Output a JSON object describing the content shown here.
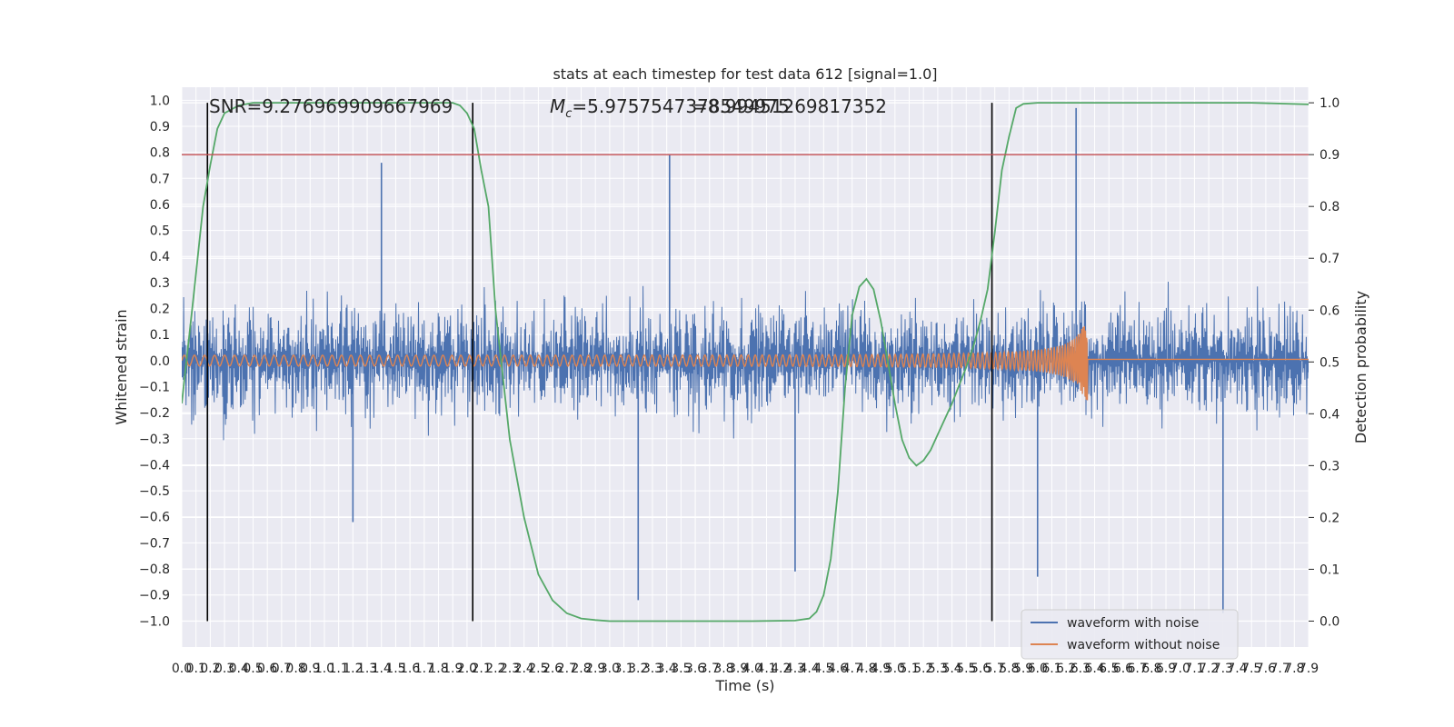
{
  "chart_data": {
    "type": "line",
    "title": "stats at each timestep for test data 612 [signal=1.0]",
    "xlabel": "Time (s)",
    "ylabel_left": "Whitened strain",
    "ylabel_right": "Detection probability",
    "xlim": [
      0.0,
      7.9
    ],
    "ylim_left": [
      -1.1,
      1.05
    ],
    "ylim_right": [
      -0.05,
      1.03
    ],
    "x_ticks": [
      "0.0",
      "0.1",
      "0.2",
      "0.3",
      "0.4",
      "0.5",
      "0.6",
      "0.7",
      "0.8",
      "0.9",
      "1.0",
      "1.1",
      "1.2",
      "1.3",
      "1.4",
      "1.5",
      "1.6",
      "1.7",
      "1.8",
      "1.9",
      "2.0",
      "2.1",
      "2.2",
      "2.3",
      "2.4",
      "2.5",
      "2.6",
      "2.7",
      "2.8",
      "2.9",
      "3.0",
      "3.1",
      "3.2",
      "3.3",
      "3.4",
      "3.5",
      "3.6",
      "3.7",
      "3.8",
      "3.9",
      "4.0",
      "4.1",
      "4.2",
      "4.3",
      "4.4",
      "4.5",
      "4.6",
      "4.7",
      "4.8",
      "4.9",
      "5.0",
      "5.1",
      "5.2",
      "5.3",
      "5.4",
      "5.5",
      "5.6",
      "5.7",
      "5.8",
      "5.9",
      "6.0",
      "6.1",
      "6.2",
      "6.3",
      "6.4",
      "6.5",
      "6.6",
      "6.7",
      "6.8",
      "6.9",
      "7.0",
      "7.1",
      "7.2",
      "7.3",
      "7.4",
      "7.5",
      "7.6",
      "7.7",
      "7.8",
      "7.9"
    ],
    "y_ticks_left": [
      "1.0",
      "0.9",
      "0.8",
      "0.7",
      "0.6",
      "0.5",
      "0.4",
      "0.3",
      "0.2",
      "0.1",
      "0.0",
      "−0.1",
      "−0.2",
      "−0.3",
      "−0.4",
      "−0.5",
      "−0.6",
      "−0.7",
      "−0.8",
      "−0.9",
      "−1.0"
    ],
    "y_ticks_right": [
      "1.0",
      "0.9",
      "0.8",
      "0.7",
      "0.6",
      "0.5",
      "0.4",
      "0.3",
      "0.2",
      "0.1",
      "0.0"
    ],
    "annotations": {
      "snr": "SNR=9.276969909667969",
      "mc_prefix": "M",
      "mc_sub": "c",
      "mc_value": "=5.9757547378549975",
      "overlap": "=8.99451269817352"
    },
    "vertical_lines_x": [
      0.18,
      2.04,
      5.68
    ],
    "threshold_probability": 0.9,
    "grid": true,
    "legend_placement": "lower-right",
    "series": [
      {
        "name": "waveform with noise",
        "color": "#4c72b0",
        "axis": "left",
        "envelope": {
          "typical_amplitude": 0.3,
          "max_peak": 0.95,
          "min_peak": -0.97
        },
        "notable_peaks": [
          [
            1.4,
            0.76
          ],
          [
            3.42,
            0.79
          ],
          [
            6.27,
            0.97
          ],
          [
            1.2,
            -0.62
          ],
          [
            3.2,
            -0.92
          ],
          [
            4.3,
            -0.81
          ],
          [
            7.3,
            -0.97
          ],
          [
            6.0,
            -0.83
          ],
          [
            0.18,
            -0.77
          ]
        ]
      },
      {
        "name": "waveform without noise",
        "color": "#dd8452",
        "axis": "left",
        "chirp": {
          "start_x": 0.0,
          "merger_x": 6.35,
          "start_amplitude": 0.02,
          "peak_amplitude": 0.2,
          "ringdown_value": 0.005
        }
      },
      {
        "name": "",
        "color": "#55a868",
        "axis": "right",
        "points": [
          [
            0.0,
            0.42
          ],
          [
            0.08,
            0.62
          ],
          [
            0.15,
            0.8
          ],
          [
            0.2,
            0.88
          ],
          [
            0.25,
            0.95
          ],
          [
            0.3,
            0.98
          ],
          [
            0.4,
            0.995
          ],
          [
            0.5,
            1.0
          ],
          [
            1.0,
            1.0
          ],
          [
            1.5,
            1.0
          ],
          [
            1.9,
            1.0
          ],
          [
            1.95,
            0.995
          ],
          [
            2.0,
            0.98
          ],
          [
            2.05,
            0.95
          ],
          [
            2.1,
            0.87
          ],
          [
            2.15,
            0.8
          ],
          [
            2.2,
            0.6
          ],
          [
            2.3,
            0.35
          ],
          [
            2.4,
            0.2
          ],
          [
            2.5,
            0.09
          ],
          [
            2.6,
            0.04
          ],
          [
            2.7,
            0.015
          ],
          [
            2.8,
            0.005
          ],
          [
            2.9,
            0.002
          ],
          [
            3.0,
            0.0
          ],
          [
            4.0,
            0.0
          ],
          [
            4.3,
            0.001
          ],
          [
            4.4,
            0.005
          ],
          [
            4.45,
            0.018
          ],
          [
            4.5,
            0.05
          ],
          [
            4.55,
            0.12
          ],
          [
            4.6,
            0.25
          ],
          [
            4.65,
            0.45
          ],
          [
            4.7,
            0.59
          ],
          [
            4.75,
            0.645
          ],
          [
            4.8,
            0.66
          ],
          [
            4.85,
            0.64
          ],
          [
            4.9,
            0.58
          ],
          [
            4.95,
            0.5
          ],
          [
            5.0,
            0.42
          ],
          [
            5.05,
            0.35
          ],
          [
            5.1,
            0.315
          ],
          [
            5.15,
            0.3
          ],
          [
            5.2,
            0.31
          ],
          [
            5.25,
            0.33
          ],
          [
            5.3,
            0.36
          ],
          [
            5.4,
            0.42
          ],
          [
            5.5,
            0.49
          ],
          [
            5.55,
            0.53
          ],
          [
            5.6,
            0.58
          ],
          [
            5.65,
            0.64
          ],
          [
            5.7,
            0.75
          ],
          [
            5.75,
            0.87
          ],
          [
            5.8,
            0.935
          ],
          [
            5.85,
            0.99
          ],
          [
            5.9,
            0.998
          ],
          [
            6.0,
            1.0
          ],
          [
            7.0,
            1.0
          ],
          [
            7.5,
            1.0
          ],
          [
            7.9,
            0.997
          ]
        ]
      },
      {
        "name": "",
        "color": "#c44e52",
        "axis": "right",
        "points": [
          [
            0.0,
            0.9
          ],
          [
            7.9,
            0.9
          ]
        ]
      }
    ]
  }
}
